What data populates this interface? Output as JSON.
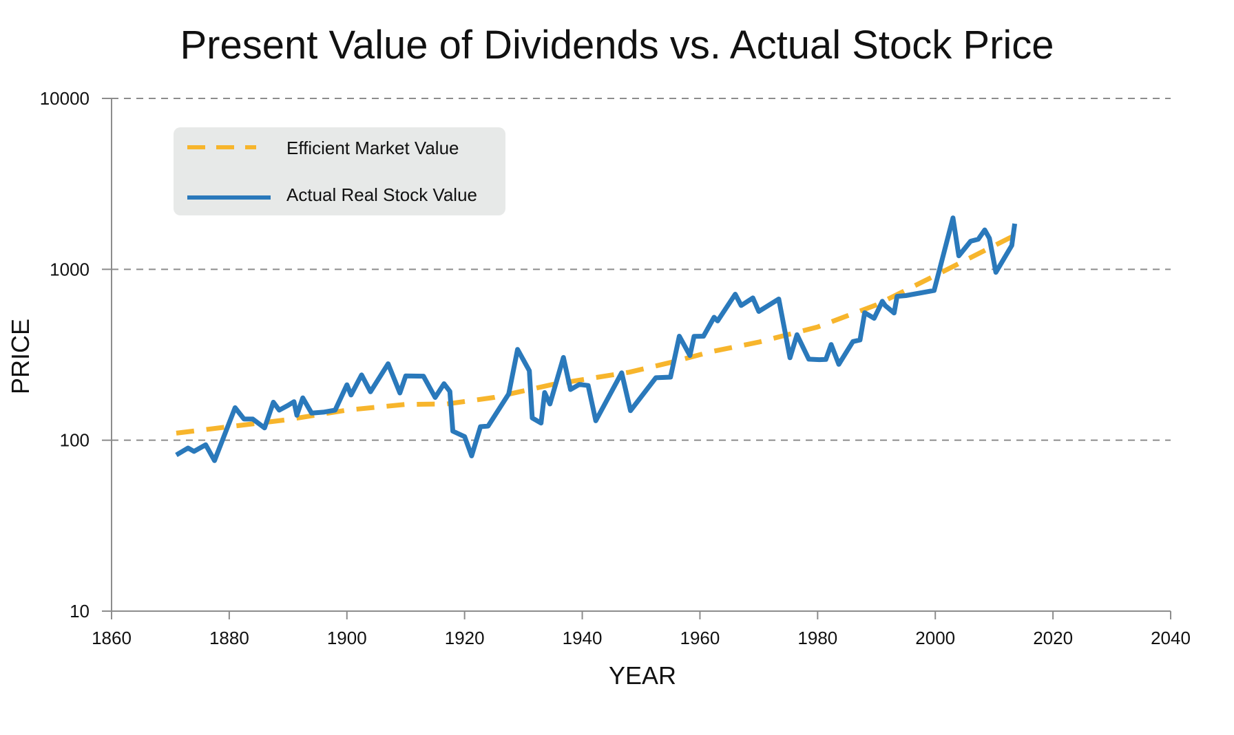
{
  "chart_data": {
    "type": "line",
    "title": "Present Value of Dividends vs. Actual Stock Price",
    "xlabel": "YEAR",
    "ylabel": "PRICE",
    "xlim": [
      1860,
      2040
    ],
    "ylim": [
      10,
      10000
    ],
    "yscale": "log",
    "x_ticks": [
      "1860",
      "1880",
      "1900",
      "1920",
      "1940",
      "1960",
      "1980",
      "2000",
      "2020",
      "2040"
    ],
    "y_ticks": [
      "10",
      "100",
      "1000",
      "10000"
    ],
    "grid": "horizontal dashed",
    "legend": "top-left",
    "series": [
      {
        "name": "Efficient Market Value",
        "color": "#f7b52c",
        "style": "dashed",
        "x": [
          1871,
          1880,
          1890,
          1900,
          1910,
          1917,
          1925,
          1935,
          1948,
          1955,
          1962,
          1970,
          1980,
          1990,
          2000,
          2013
        ],
        "y": [
          110,
          120,
          132,
          150,
          162,
          163,
          178,
          212,
          250,
          285,
          330,
          375,
          460,
          620,
          920,
          1550
        ]
      },
      {
        "name": "Actual Real Stock Value",
        "color": "#2a79bb",
        "style": "solid",
        "x": [
          1871,
          1873,
          1874,
          1876,
          1877.5,
          1881,
          1882.5,
          1884,
          1886,
          1887.5,
          1888.5,
          1890,
          1891,
          1891.5,
          1892.5,
          1894,
          1896,
          1898,
          1900,
          1900.7,
          1902.5,
          1904,
          1907,
          1909,
          1910,
          1913,
          1915,
          1916.5,
          1917.5,
          1918,
          1920,
          1921.2,
          1922.7,
          1924,
          1927.5,
          1929,
          1931,
          1931.5,
          1933,
          1933.6,
          1934.5,
          1936.8,
          1938,
          1939.5,
          1941,
          1942.3,
          1946.7,
          1948.2,
          1952.5,
          1955,
          1956.5,
          1958.3,
          1959,
          1960.6,
          1962.4,
          1963,
          1966,
          1967,
          1969,
          1970,
          1973.4,
          1975.3,
          1976.5,
          1978.5,
          1980.3,
          1981.4,
          1982.3,
          1983.6,
          1986,
          1987.2,
          1988,
          1989.6,
          1991,
          1991.5,
          1993,
          1993.5,
          1995,
          1999.8,
          2003,
          2004,
          2006,
          2007.3,
          2008.4,
          2009.2,
          2010.3,
          2013,
          2013.5
        ],
        "y": [
          82,
          90,
          86,
          94,
          76,
          155,
          133,
          133,
          118,
          167,
          150,
          160,
          168,
          140,
          177,
          144,
          146,
          150,
          211,
          184,
          241,
          192,
          280,
          189,
          238,
          237,
          178,
          214,
          193,
          113,
          105,
          81,
          120,
          121,
          187,
          340,
          255,
          135,
          126,
          190,
          163,
          305,
          198,
          212,
          209,
          130,
          248,
          149,
          232,
          234,
          406,
          313,
          405,
          406,
          524,
          499,
          715,
          614,
          680,
          567,
          670,
          304,
          414,
          298,
          296,
          297,
          363,
          278,
          378,
          386,
          557,
          517,
          650,
          613,
          555,
          695,
          702,
          752,
          2000,
          1200,
          1460,
          1500,
          1700,
          1520,
          960,
          1380,
          1850
        ]
      }
    ]
  }
}
